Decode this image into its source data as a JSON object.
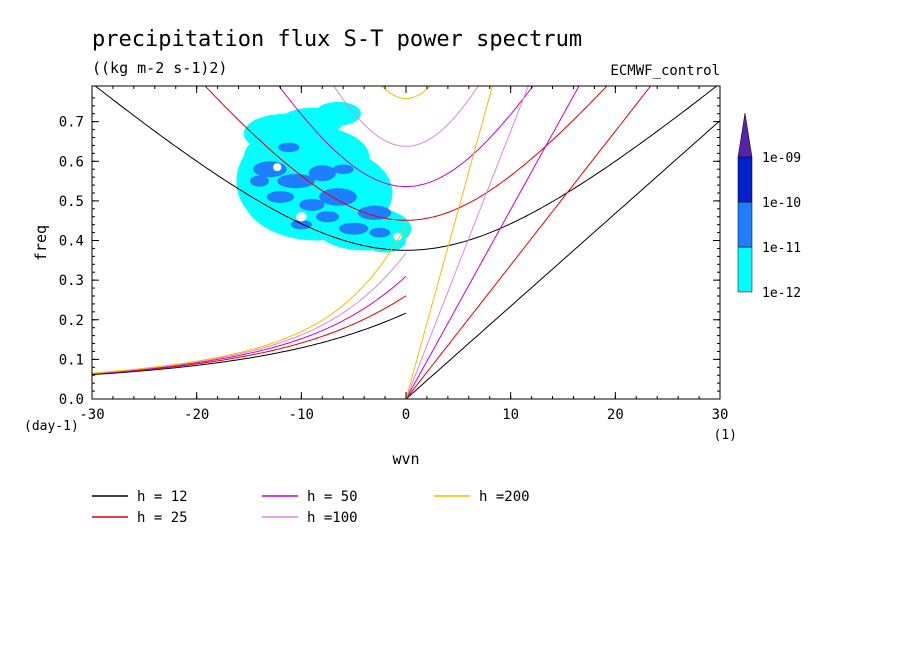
{
  "chart_data": {
    "type": "line",
    "title": "precipitation flux S-T power spectrum",
    "subtitle": "((kg m-2 s-1)2)",
    "model_label": "ECMWF_control",
    "xlabel": "wvn",
    "ylabel": "freq",
    "x_unit": "(1)",
    "y_unit": "(day-1)",
    "xlim": [
      -30,
      30
    ],
    "ylim": [
      0,
      0.79
    ],
    "x_ticks": [
      -30,
      -20,
      -10,
      0,
      10,
      20,
      30
    ],
    "x_tick_labels": [
      "-30",
      "-20",
      "-10",
      "0",
      "10",
      "20",
      "30"
    ],
    "y_ticks": [
      0,
      0.1,
      0.2,
      0.3,
      0.4,
      0.5,
      0.6,
      0.7
    ],
    "y_tick_labels": [
      "0.0",
      "0.1",
      "0.2",
      "0.3",
      "0.4",
      "0.5",
      "0.6",
      "0.7"
    ],
    "grid": false,
    "legend_position": "bottom-left",
    "colorbar": {
      "labels": [
        "1e-12",
        "1e-11",
        "1e-10",
        "1e-09"
      ],
      "colors": [
        "#00ffff",
        "#1e7eff",
        "#0022cc",
        "#5522aa"
      ]
    },
    "contour_region": {
      "wvn_range": [
        -16,
        0
      ],
      "freq_range": [
        0.36,
        0.75
      ],
      "min_level": "1e-12",
      "max_level": "1e-10"
    },
    "series": [
      {
        "name": "h = 12",
        "color": "#000000"
      },
      {
        "name": "h = 25",
        "color": "#e00000"
      },
      {
        "name": "h = 50",
        "color": "#cc00cc"
      },
      {
        "name": "h =100",
        "color": "#dd88dd"
      },
      {
        "name": "h =200",
        "color": "#f0c000"
      }
    ]
  }
}
